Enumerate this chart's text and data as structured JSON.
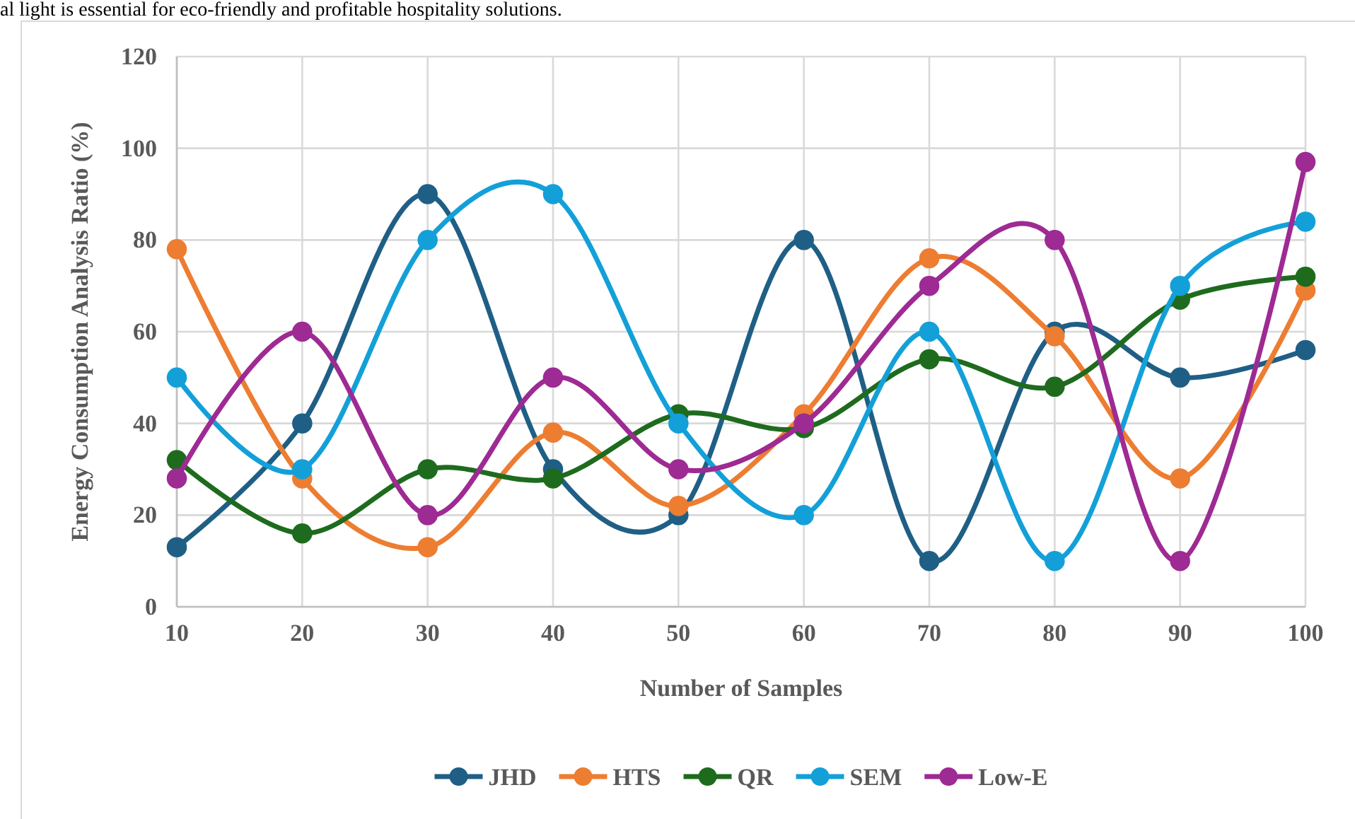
{
  "chart_data": {
    "type": "line",
    "xlabel": "Number of Samples",
    "ylabel": "Energy Consumption Analysis Ratio (%)",
    "annotations": [
      "al light is essential for eco-friendly and profitable hospitality solutions."
    ],
    "x": [
      10,
      20,
      30,
      40,
      50,
      60,
      70,
      80,
      90,
      100
    ],
    "xlim": [
      10,
      100
    ],
    "xticks": [
      10,
      20,
      30,
      40,
      50,
      60,
      70,
      80,
      90,
      100
    ],
    "ylim": [
      0,
      120
    ],
    "yticks": [
      0,
      20,
      40,
      60,
      80,
      100,
      120
    ],
    "grid": true,
    "legend": "bottom",
    "marker": "circle",
    "line_style": "solid",
    "series": [
      {
        "name": "JHD",
        "color": "#1f5f85",
        "values": [
          13,
          40,
          90,
          30,
          20,
          80,
          10,
          60,
          50,
          56
        ]
      },
      {
        "name": "HTS",
        "color": "#ed7d31",
        "values": [
          78,
          28,
          13,
          38,
          22,
          42,
          76,
          59,
          28,
          69
        ]
      },
      {
        "name": "QR",
        "color": "#1e6b1e",
        "values": [
          32,
          16,
          30,
          28,
          42,
          39,
          54,
          48,
          67,
          72
        ]
      },
      {
        "name": "SEM",
        "color": "#13a0d8",
        "values": [
          50,
          30,
          80,
          90,
          40,
          20,
          60,
          10,
          70,
          84
        ]
      },
      {
        "name": "Low-E",
        "color": "#9e2a93",
        "values": [
          28,
          60,
          20,
          50,
          30,
          40,
          70,
          80,
          10,
          97
        ]
      }
    ]
  }
}
